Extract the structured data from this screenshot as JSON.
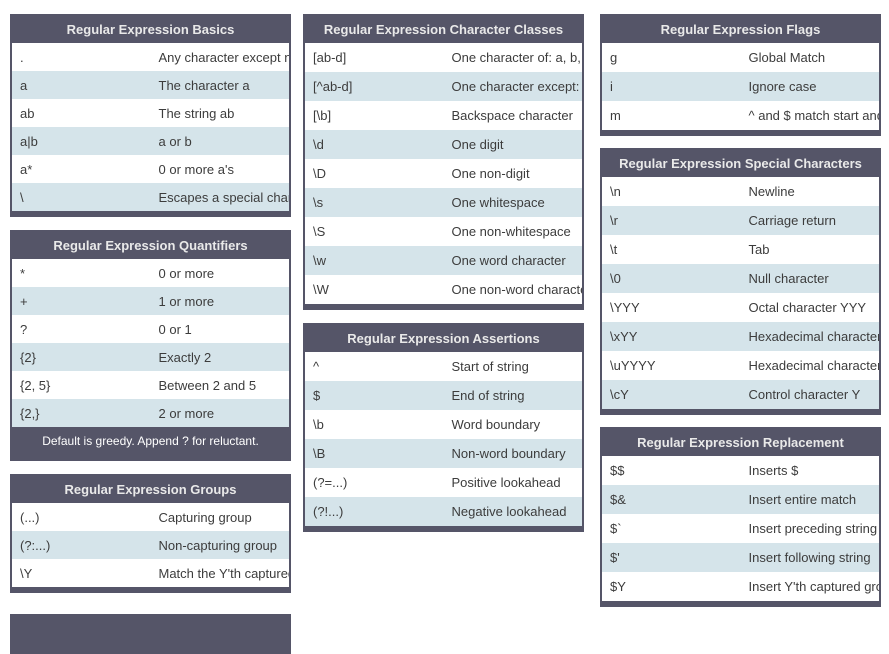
{
  "colors": {
    "header_background": "#555568",
    "stripe_row_background": "#d5e4ea",
    "row_text": "#3c3c3c",
    "header_text": "#e9e9e9",
    "page_background": "#ffffff"
  },
  "tables": {
    "basics": {
      "title": "Regular Expression Basics",
      "rows": [
        [
          ".",
          "Any character except newline"
        ],
        [
          "a",
          "The character a"
        ],
        [
          "ab",
          "The string ab"
        ],
        [
          "a|b",
          "a or b"
        ],
        [
          "a*",
          "0 or more a's"
        ],
        [
          "\\",
          "Escapes a special character"
        ]
      ]
    },
    "quantifiers": {
      "title": "Regular Expression Quantifiers",
      "rows": [
        [
          "*",
          "0 or more"
        ],
        [
          "+",
          "1 or more"
        ],
        [
          "?",
          "0 or 1"
        ],
        [
          "{2}",
          "Exactly 2"
        ],
        [
          "{2, 5}",
          "Between 2 and 5"
        ],
        [
          "{2,}",
          "2 or more"
        ]
      ],
      "footer": "Default is greedy. Append ? for reluctant."
    },
    "groups": {
      "title": "Regular Expression Groups",
      "rows": [
        [
          "(...)",
          "Capturing group"
        ],
        [
          "(?:...)",
          "Non-capturing group"
        ],
        [
          "\\Y",
          "Match the Y'th captured group"
        ]
      ]
    },
    "character_classes": {
      "title": "Regular Expression Character Classes",
      "rows": [
        [
          "[ab-d]",
          "One character of: a, b, c, d"
        ],
        [
          "[^ab-d]",
          "One character except: a, b, c, d"
        ],
        [
          "[\\b]",
          "Backspace character"
        ],
        [
          "\\d",
          "One digit"
        ],
        [
          "\\D",
          "One non-digit"
        ],
        [
          "\\s",
          "One whitespace"
        ],
        [
          "\\S",
          "One non-whitespace"
        ],
        [
          "\\w",
          "One word character"
        ],
        [
          "\\W",
          "One non-word character"
        ]
      ]
    },
    "assertions": {
      "title": "Regular Expression Assertions",
      "rows": [
        [
          "^",
          "Start of string"
        ],
        [
          "$",
          "End of string"
        ],
        [
          "\\b",
          "Word boundary"
        ],
        [
          "\\B",
          "Non-word boundary"
        ],
        [
          "(?=...)",
          "Positive lookahead"
        ],
        [
          "(?!...)",
          "Negative lookahead"
        ]
      ]
    },
    "flags": {
      "title": "Regular Expression Flags",
      "rows": [
        [
          "g",
          "Global Match"
        ],
        [
          "i",
          "Ignore case"
        ],
        [
          "m",
          "^ and $ match start and end of line"
        ]
      ]
    },
    "special_characters": {
      "title": "Regular Expression Special Characters",
      "rows": [
        [
          "\\n",
          "Newline"
        ],
        [
          "\\r",
          "Carriage return"
        ],
        [
          "\\t",
          "Tab"
        ],
        [
          "\\0",
          "Null character"
        ],
        [
          "\\YYY",
          "Octal character YYY"
        ],
        [
          "\\xYY",
          "Hexadecimal character YY"
        ],
        [
          "\\uYYYY",
          "Hexadecimal character YYYY"
        ],
        [
          "\\cY",
          "Control character Y"
        ]
      ]
    },
    "replacement": {
      "title": "Regular Expression Replacement",
      "rows": [
        [
          "$$",
          "Inserts $"
        ],
        [
          "$&",
          "Insert entire match"
        ],
        [
          "$`",
          "Insert preceding string"
        ],
        [
          "$'",
          "Insert following string"
        ],
        [
          "$Y",
          "Insert Y'th captured group"
        ]
      ]
    }
  }
}
